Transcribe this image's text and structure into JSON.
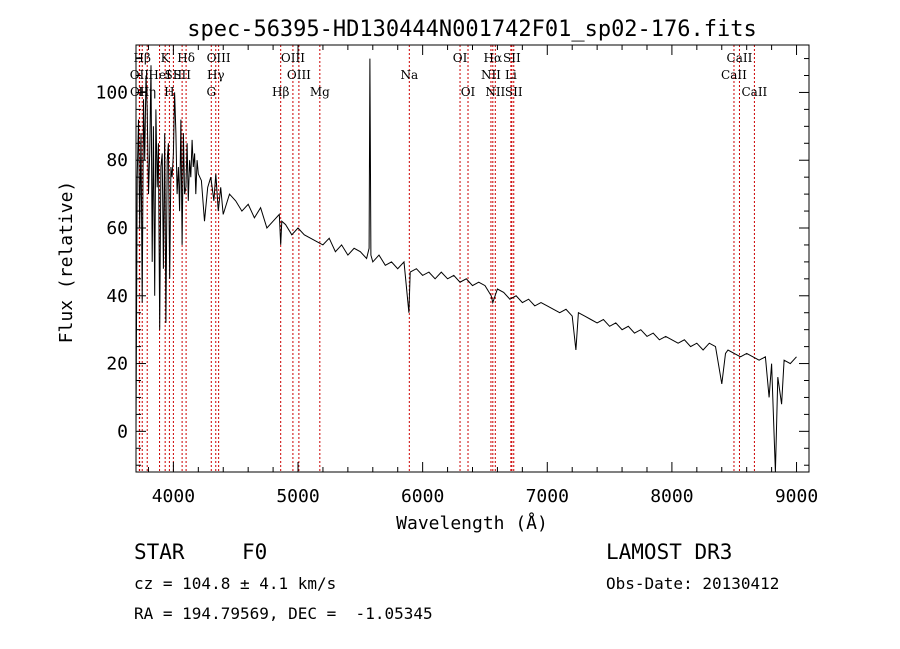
{
  "chart_data": {
    "type": "line",
    "title": "spec-56395-HD130444N001742F01_sp02-176.fits",
    "xlabel": "Wavelength (Å)",
    "ylabel": "Flux (relative)",
    "xlim": [
      3700,
      9100
    ],
    "ylim": [
      -12,
      114
    ],
    "xticks": [
      4000,
      5000,
      6000,
      7000,
      8000,
      9000
    ],
    "yticks": [
      0,
      20,
      40,
      60,
      80,
      100
    ],
    "line_color": "#000000",
    "marker_color": "#cc0000",
    "series": [
      {
        "x": [
          3700,
          3710,
          3720,
          3730,
          3740,
          3750,
          3760,
          3770,
          3780,
          3790,
          3800,
          3810,
          3820,
          3830,
          3840,
          3850,
          3860,
          3870,
          3880,
          3890,
          3900,
          3910,
          3920,
          3930,
          3940,
          3950,
          3960,
          3970,
          3980,
          3990,
          4000,
          4010,
          4020,
          4030,
          4040,
          4050,
          4060,
          4070,
          4080,
          4090,
          4100,
          4110,
          4120,
          4130,
          4140,
          4150,
          4160,
          4170,
          4180,
          4190,
          4200,
          4225,
          4250,
          4275,
          4300,
          4325,
          4340,
          4360,
          4380,
          4400,
          4450,
          4500,
          4550,
          4600,
          4650,
          4700,
          4750,
          4800,
          4850,
          4861,
          4870,
          4900,
          4950,
          5000,
          5050,
          5100,
          5150,
          5200,
          5250,
          5300,
          5350,
          5400,
          5450,
          5500,
          5550,
          5570,
          5577,
          5585,
          5600,
          5650,
          5700,
          5750,
          5800,
          5850,
          5890,
          5900,
          5950,
          6000,
          6050,
          6100,
          6150,
          6200,
          6250,
          6300,
          6350,
          6400,
          6450,
          6500,
          6550,
          6563,
          6600,
          6650,
          6700,
          6750,
          6800,
          6850,
          6900,
          6950,
          7000,
          7050,
          7100,
          7150,
          7200,
          7230,
          7250,
          7300,
          7350,
          7400,
          7450,
          7500,
          7550,
          7600,
          7650,
          7700,
          7750,
          7800,
          7850,
          7900,
          7950,
          8000,
          8050,
          8100,
          8150,
          8200,
          8250,
          8300,
          8350,
          8400,
          8430,
          8450,
          8500,
          8550,
          8600,
          8650,
          8700,
          8750,
          8780,
          8800,
          8830,
          8850,
          8880,
          8900,
          8950,
          9000
        ],
        "y": [
          0,
          75,
          92,
          60,
          88,
          38,
          98,
          80,
          105,
          95,
          70,
          82,
          108,
          50,
          90,
          40,
          95,
          72,
          85,
          30,
          78,
          82,
          48,
          88,
          32,
          80,
          85,
          45,
          78,
          75,
          82,
          100,
          88,
          70,
          78,
          65,
          92,
          55,
          88,
          70,
          72,
          85,
          68,
          80,
          75,
          86,
          78,
          82,
          70,
          80,
          76,
          74,
          62,
          72,
          75,
          68,
          76,
          65,
          72,
          64,
          70,
          68,
          65,
          67,
          63,
          66,
          60,
          62,
          64,
          55,
          62,
          61,
          58,
          60,
          58,
          57,
          56,
          55,
          57,
          53,
          55,
          52,
          54,
          53,
          51,
          54,
          110,
          52,
          50,
          52,
          49,
          50,
          48,
          50,
          35,
          47,
          48,
          46,
          47,
          45,
          47,
          45,
          46,
          44,
          45,
          43,
          44,
          43,
          40,
          38,
          42,
          41,
          39,
          40,
          38,
          39,
          37,
          38,
          37,
          36,
          35,
          36,
          34,
          24,
          35,
          34,
          33,
          32,
          33,
          31,
          32,
          30,
          31,
          29,
          30,
          28,
          29,
          27,
          28,
          27,
          26,
          27,
          25,
          26,
          24,
          26,
          25,
          14,
          23,
          24,
          23,
          22,
          23,
          22,
          21,
          22,
          10,
          20,
          -12,
          16,
          8,
          21,
          20,
          22
        ]
      }
    ],
    "lines": [
      {
        "label": "Hβ",
        "x": 3750,
        "row": 1
      },
      {
        "label": "OII",
        "x": 3727,
        "row": 2
      },
      {
        "label": "OII",
        "x": 3729,
        "row": 3
      },
      {
        "label": "Hη",
        "x": 3790,
        "row": 3
      },
      {
        "label": "K",
        "x": 3934,
        "row": 1
      },
      {
        "label": "HeI",
        "x": 3889,
        "row": 2
      },
      {
        "label": "SII",
        "x": 4000,
        "row": 2
      },
      {
        "label": "H",
        "x": 3968,
        "row": 3
      },
      {
        "label": "Hδ",
        "x": 4102,
        "row": 1
      },
      {
        "label": "SII",
        "x": 4070,
        "row": 2
      },
      {
        "label": "OIII",
        "x": 4363,
        "row": 1
      },
      {
        "label": "Hγ",
        "x": 4340,
        "row": 2
      },
      {
        "label": "G",
        "x": 4304,
        "row": 3
      },
      {
        "label": "Hβ",
        "x": 4861,
        "row": 3
      },
      {
        "label": "OIII",
        "x": 4959,
        "row": 1
      },
      {
        "label": "OIII",
        "x": 5007,
        "row": 2
      },
      {
        "label": "Mg",
        "x": 5175,
        "row": 3
      },
      {
        "label": "Na",
        "x": 5893,
        "row": 2
      },
      {
        "label": "OI",
        "x": 6300,
        "row": 1
      },
      {
        "label": "OI",
        "x": 6364,
        "row": 3
      },
      {
        "label": "Hα",
        "x": 6563,
        "row": 1
      },
      {
        "label": "SII",
        "x": 6716,
        "row": 1
      },
      {
        "label": "NII",
        "x": 6548,
        "row": 2
      },
      {
        "label": "Li",
        "x": 6708,
        "row": 2
      },
      {
        "label": "NII",
        "x": 6583,
        "row": 3
      },
      {
        "label": "SII",
        "x": 6731,
        "row": 3
      },
      {
        "label": "CaII",
        "x": 8542,
        "row": 1
      },
      {
        "label": "CaII",
        "x": 8498,
        "row": 2
      },
      {
        "label": "CaII",
        "x": 8662,
        "row": 3
      }
    ]
  },
  "info": {
    "object_class": "STAR",
    "subclass": "F0",
    "survey": "LAMOST DR3",
    "cz": "cz = 104.8 ± 4.1 km/s",
    "obs_date": "Obs-Date: 20130412",
    "coords": "RA = 194.79569, DEC =  -1.05345"
  }
}
